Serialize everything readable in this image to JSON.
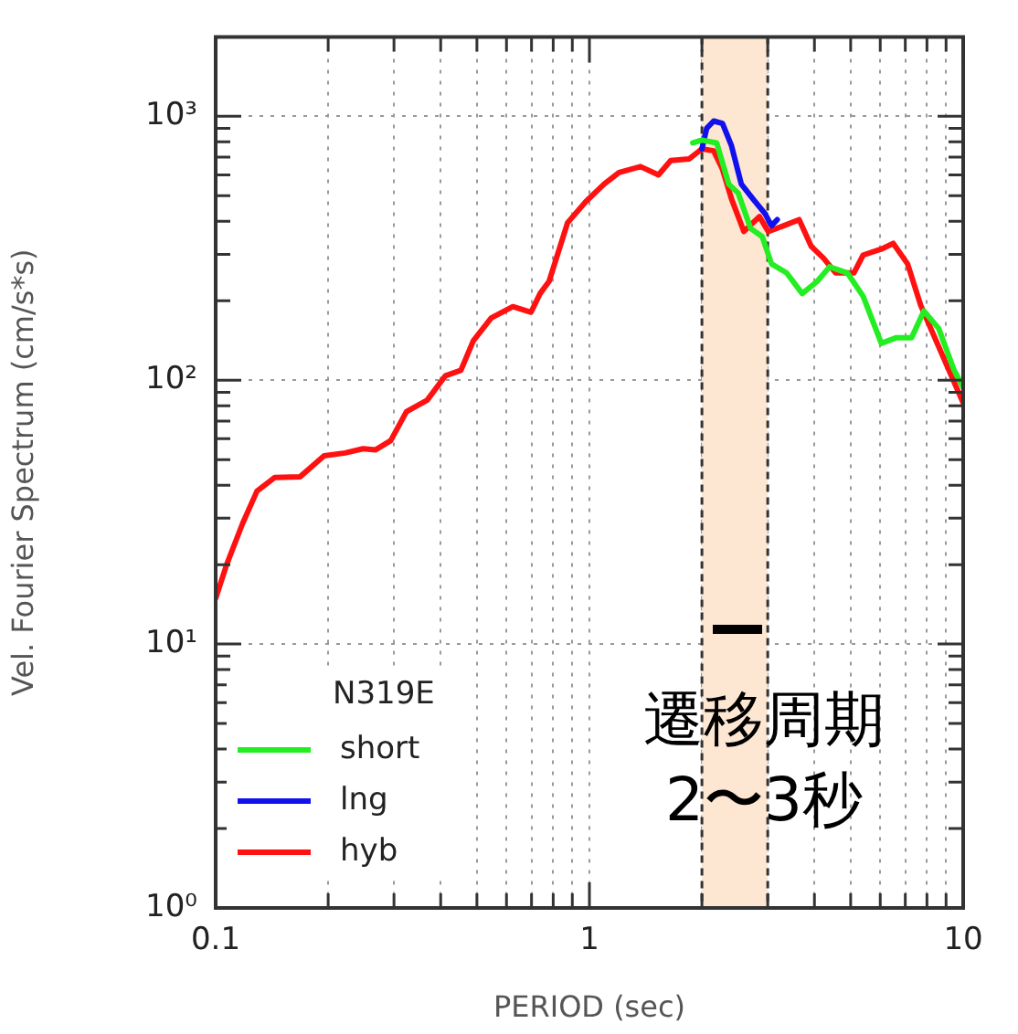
{
  "chart_data": {
    "type": "line",
    "xlabel": "PERIOD (sec)",
    "ylabel": "Vel. Fourier Spectrum (cm/s*s)",
    "legend_title": "N319E",
    "legend": "bottom left",
    "log": "xy",
    "grid": true,
    "marker": "none",
    "line_style": "solid",
    "xlim": [
      0.1,
      10
    ],
    "ylim": [
      1,
      2000
    ],
    "xticks": [
      0.1,
      {
        "value": 0.2,
        "label": null
      },
      {
        "value": 0.3,
        "label": null
      },
      {
        "value": 0.4,
        "label": null
      },
      {
        "value": 0.5,
        "label": null
      },
      {
        "value": 0.6,
        "label": null
      },
      {
        "value": 0.7,
        "label": null
      },
      {
        "value": 0.8,
        "label": null
      },
      {
        "value": 0.9,
        "label": null
      },
      1,
      {
        "value": 2,
        "label": null
      },
      {
        "value": 3,
        "label": null
      },
      {
        "value": 4,
        "label": null
      },
      {
        "value": 5,
        "label": null
      },
      {
        "value": 6,
        "label": null
      },
      {
        "value": 7,
        "label": null
      },
      {
        "value": 8,
        "label": null
      },
      {
        "value": 9,
        "label": null
      },
      10
    ],
    "yticks": [
      {
        "value": 1,
        "label": "10⁰"
      },
      {
        "value": 2,
        "label": null
      },
      {
        "value": 3,
        "label": null
      },
      {
        "value": 4,
        "label": null
      },
      {
        "value": 5,
        "label": null
      },
      {
        "value": 6,
        "label": null
      },
      {
        "value": 7,
        "label": null
      },
      {
        "value": 8,
        "label": null
      },
      {
        "value": 9,
        "label": null
      },
      {
        "value": 10,
        "label": "10¹"
      },
      {
        "value": 20,
        "label": null
      },
      {
        "value": 30,
        "label": null
      },
      {
        "value": 40,
        "label": null
      },
      {
        "value": 50,
        "label": null
      },
      {
        "value": 60,
        "label": null
      },
      {
        "value": 70,
        "label": null
      },
      {
        "value": 80,
        "label": null
      },
      {
        "value": 90,
        "label": null
      },
      {
        "value": 100,
        "label": "10²"
      },
      {
        "value": 200,
        "label": null
      },
      {
        "value": 300,
        "label": null
      },
      {
        "value": 400,
        "label": null
      },
      {
        "value": 500,
        "label": null
      },
      {
        "value": 600,
        "label": null
      },
      {
        "value": 700,
        "label": null
      },
      {
        "value": 800,
        "label": null
      },
      {
        "value": 900,
        "label": null
      },
      {
        "value": 1000,
        "label": "10³"
      }
    ],
    "bands": [
      {
        "axis": "x",
        "from": 2,
        "to": 3,
        "color": "#fde6d2"
      }
    ],
    "annotations": [
      "遷移周期",
      "2〜3秒"
    ],
    "series": [
      {
        "name": "short",
        "color": "#22ee22",
        "x": [
          1.89,
          2.0,
          2.19,
          2.36,
          2.5,
          2.7,
          2.9,
          3.07,
          3.37,
          3.71,
          4.07,
          4.39,
          4.9,
          5.4,
          6.04,
          6.63,
          7.28,
          7.85,
          8.6,
          9.46,
          10
        ],
        "values": [
          793,
          813,
          793,
          553,
          512,
          376,
          350,
          276,
          255,
          213,
          237,
          269,
          255,
          208,
          138,
          145,
          145,
          183,
          157,
          109,
          94
        ]
      },
      {
        "name": "lng",
        "color": "#1111ee",
        "x": [
          2.0,
          2.06,
          2.15,
          2.27,
          2.4,
          2.55,
          2.74,
          2.95,
          3.07,
          3.18
        ],
        "values": [
          753,
          902,
          960,
          940,
          773,
          553,
          486,
          428,
          385,
          406
        ]
      },
      {
        "name": "hyb",
        "color": "#ff1111",
        "x": [
          0.1,
          0.107,
          0.118,
          0.129,
          0.144,
          0.168,
          0.195,
          0.222,
          0.248,
          0.268,
          0.294,
          0.324,
          0.368,
          0.412,
          0.453,
          0.489,
          0.546,
          0.624,
          0.698,
          0.738,
          0.78,
          0.874,
          0.978,
          1.094,
          1.2,
          1.37,
          1.53,
          1.65,
          1.85,
          2.0,
          2.15,
          2.27,
          2.4,
          2.59,
          2.85,
          3.01,
          3.31,
          3.64,
          3.92,
          4.23,
          4.56,
          5.1,
          5.4,
          6.04,
          6.5,
          7.1,
          7.7,
          8.6,
          10
        ],
        "values": [
          14.9,
          20,
          28.6,
          38,
          42.8,
          43,
          51.7,
          53,
          55,
          54.5,
          59,
          76,
          84,
          104,
          109,
          141,
          172,
          190,
          181,
          213,
          237,
          395,
          475,
          553,
          612,
          645,
          600,
          680,
          690,
          753,
          740,
          630,
          486,
          366,
          417,
          366,
          385,
          406,
          322,
          290,
          255,
          255,
          298,
          314,
          330,
          276,
          192,
          134,
          82
        ]
      }
    ]
  }
}
